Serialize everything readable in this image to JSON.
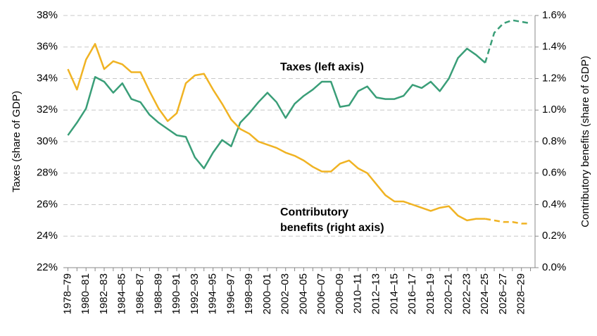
{
  "chart_data": {
    "type": "line",
    "ylabel": "Taxes (share of GDP)",
    "y2label": "Contributory benefits (share of GDP)",
    "categories": [
      "1978–79",
      null,
      "1980–81",
      null,
      "1982–83",
      null,
      "1984–85",
      null,
      "1986–87",
      null,
      "1988–89",
      null,
      "1990–91",
      null,
      "1992–93",
      null,
      "1994–95",
      null,
      "1996–97",
      null,
      "1998–99",
      null,
      "2000–01",
      null,
      "2002–03",
      null,
      "2004–05",
      null,
      "2006–07",
      null,
      "2008–09",
      null,
      "2010–11",
      null,
      "2012–13",
      null,
      "2014–15",
      null,
      "2016–17",
      null,
      "2018–19",
      null,
      "2020–21",
      null,
      "2022–23",
      null,
      "2024–25",
      null,
      "2026–27",
      null,
      "2028–29",
      null
    ],
    "projection_start": 46,
    "series": [
      {
        "name": [
          "Taxes (left axis)"
        ],
        "color": "#3a9e78",
        "axis": "y",
        "values": [
          30.4,
          31.2,
          32.1,
          34.1,
          33.8,
          33.1,
          33.7,
          32.7,
          32.5,
          31.7,
          31.2,
          30.8,
          30.4,
          30.3,
          29.0,
          28.3,
          29.3,
          30.1,
          29.7,
          31.2,
          31.8,
          32.5,
          33.1,
          32.5,
          31.5,
          32.4,
          32.9,
          33.3,
          33.8,
          33.8,
          32.2,
          32.3,
          33.2,
          33.5,
          32.8,
          32.7,
          32.7,
          32.9,
          33.6,
          33.4,
          33.8,
          33.2,
          34.0,
          35.3,
          35.9,
          35.5,
          35.0,
          36.9,
          37.5,
          37.7,
          37.6,
          37.5
        ]
      },
      {
        "name": [
          "Contributory",
          "benefits (right axis)"
        ],
        "color": "#f0b323",
        "axis": "y2",
        "values": [
          1.26,
          1.13,
          1.32,
          1.42,
          1.26,
          1.31,
          1.29,
          1.24,
          1.24,
          1.12,
          1.01,
          0.93,
          0.98,
          1.17,
          1.22,
          1.23,
          1.13,
          1.04,
          0.94,
          0.88,
          0.85,
          0.8,
          0.78,
          0.76,
          0.73,
          0.71,
          0.68,
          0.64,
          0.61,
          0.61,
          0.66,
          0.68,
          0.63,
          0.6,
          0.53,
          0.46,
          0.42,
          0.42,
          0.4,
          0.38,
          0.36,
          0.38,
          0.39,
          0.33,
          0.3,
          0.31,
          0.31,
          0.3,
          0.29,
          0.29,
          0.28,
          0.28
        ]
      }
    ],
    "ylim": [
      22,
      38
    ],
    "yticks": [
      {
        "value": 22,
        "label": "22%"
      },
      {
        "value": 24,
        "label": "24%"
      },
      {
        "value": 26,
        "label": "26%"
      },
      {
        "value": 28,
        "label": "28%"
      },
      {
        "value": 30,
        "label": "30%"
      },
      {
        "value": 32,
        "label": "32%"
      },
      {
        "value": 34,
        "label": "34%"
      },
      {
        "value": 36,
        "label": "36%"
      },
      {
        "value": 38,
        "label": "38%"
      }
    ],
    "y2lim": [
      0,
      1.6
    ],
    "y2ticks": [
      {
        "value": 0,
        "label": "0.0%"
      },
      {
        "value": 0.2,
        "label": "0.2%"
      },
      {
        "value": 0.4,
        "label": "0.4%"
      },
      {
        "value": 0.6,
        "label": "0.6%"
      },
      {
        "value": 0.8,
        "label": "0.8%"
      },
      {
        "value": 1.0,
        "label": "1.0%"
      },
      {
        "value": 1.2,
        "label": "1.2%"
      },
      {
        "value": 1.4,
        "label": "1.4%"
      },
      {
        "value": 1.6,
        "label": "1.6%"
      }
    ],
    "grid": true
  }
}
